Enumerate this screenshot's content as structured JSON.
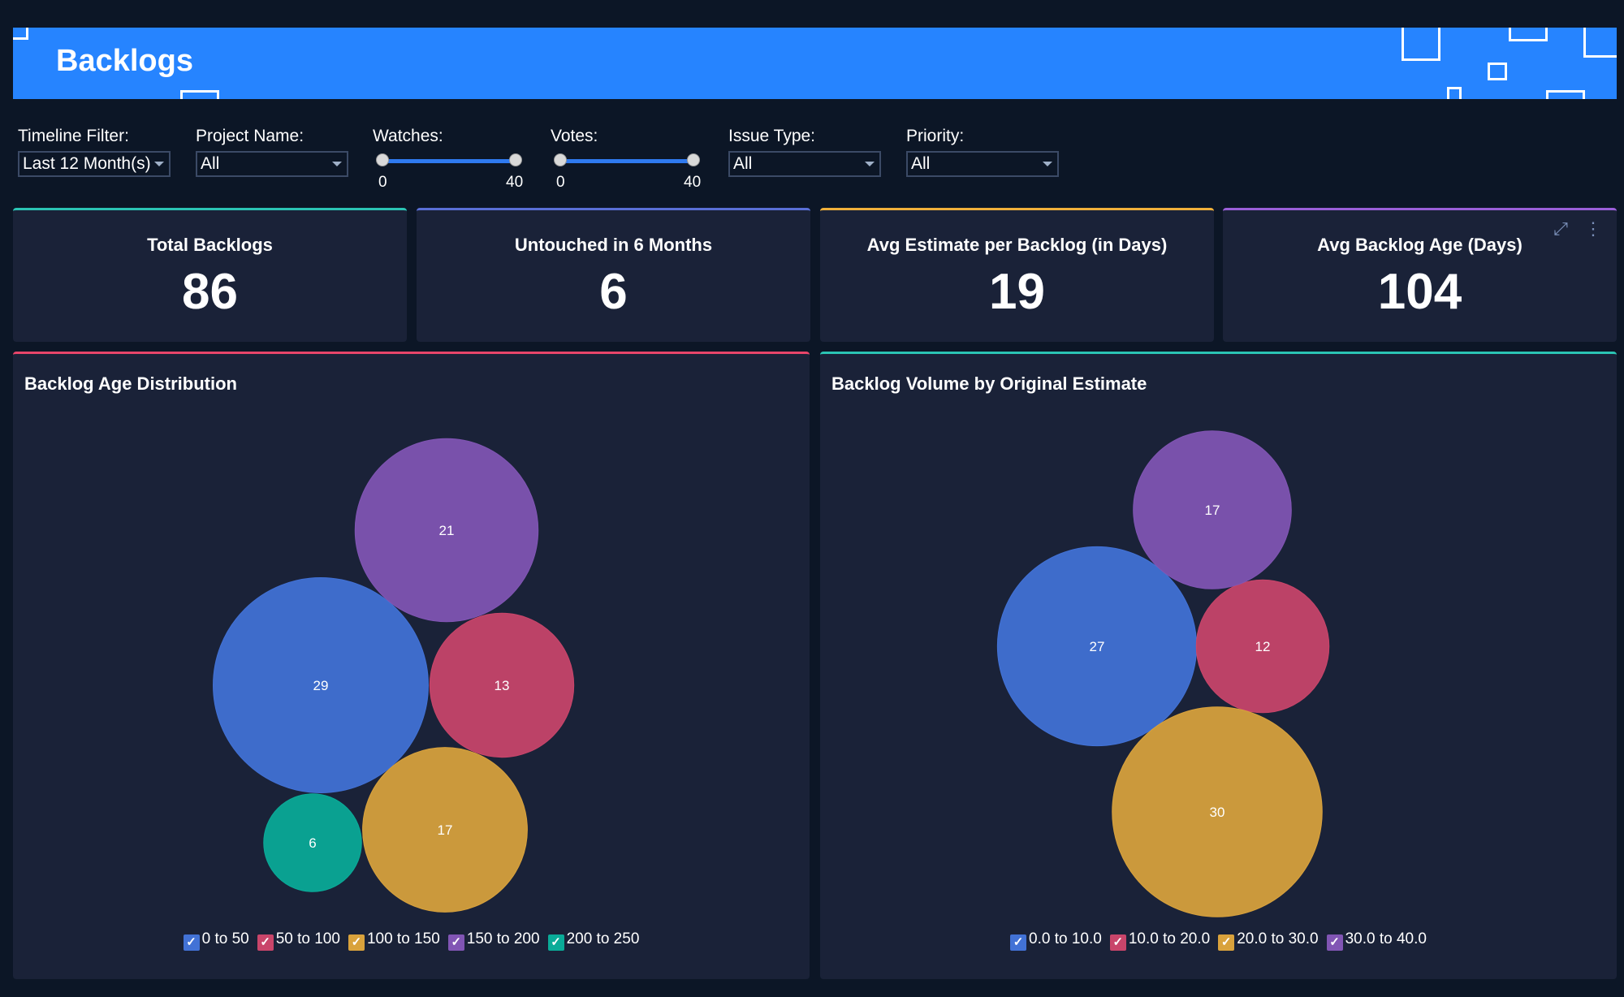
{
  "header": {
    "title": "Backlogs"
  },
  "filters": {
    "timeline": {
      "label": "Timeline Filter:",
      "value": "Last 12 Month(s)"
    },
    "project": {
      "label": "Project Name:",
      "value": "All"
    },
    "watches": {
      "label": "Watches:",
      "min": "0",
      "max": "40"
    },
    "votes": {
      "label": "Votes:",
      "min": "0",
      "max": "40"
    },
    "issue_type": {
      "label": "Issue Type:",
      "value": "All"
    },
    "priority": {
      "label": "Priority:",
      "value": "All"
    }
  },
  "kpis": [
    {
      "title": "Total Backlogs",
      "value": "86",
      "accent": "#2bc4b4"
    },
    {
      "title": "Untouched in 6 Months",
      "value": "6",
      "accent": "#5a6fd6"
    },
    {
      "title": "Avg Estimate per Backlog (in Days)",
      "value": "19",
      "accent": "#f0b03a"
    },
    {
      "title": "Avg Backlog Age (Days)",
      "value": "104",
      "accent": "#9a5fd8"
    }
  ],
  "panels": {
    "age": {
      "title": "Backlog Age Distribution",
      "accent": "#e8456a"
    },
    "estimate": {
      "title": "Backlog Volume by Original Estimate",
      "accent": "#2bc4b4"
    }
  },
  "chart_data": [
    {
      "type": "bubble",
      "title": "Backlog Age Distribution",
      "categories": [
        "0 to 50",
        "50 to 100",
        "100 to 150",
        "150 to 200",
        "200 to 250"
      ],
      "values": [
        29,
        13,
        17,
        21,
        6
      ],
      "colors": [
        "#4272d6",
        "#c9456a",
        "#d9a23c",
        "#8155b4",
        "#0aab98"
      ],
      "legend": "bottom"
    },
    {
      "type": "bubble",
      "title": "Backlog Volume by Original Estimate",
      "categories": [
        "0.0 to 10.0",
        "10.0 to 20.0",
        "20.0 to 30.0",
        "30.0 to 40.0"
      ],
      "values": [
        27,
        12,
        30,
        17
      ],
      "colors": [
        "#4272d6",
        "#c9456a",
        "#d9a23c",
        "#8155b4"
      ],
      "legend": "bottom"
    }
  ]
}
